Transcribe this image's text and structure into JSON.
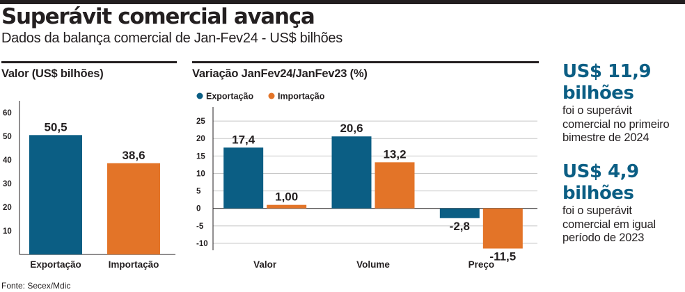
{
  "header": {
    "title": "Superávit comercial avança",
    "subtitle": "Dados da balança comercial de Jan-Fev24 - US$ bilhões"
  },
  "colors": {
    "export": "#0b5e84",
    "import": "#e37428",
    "text": "#231f20",
    "grid": "#c8c8c8"
  },
  "chart_data": [
    {
      "type": "bar",
      "title": "Valor (US$ bilhões)",
      "categories": [
        "Exportação",
        "Importação"
      ],
      "values": [
        50.5,
        38.6
      ],
      "value_labels": [
        "50,5",
        "38,6"
      ],
      "yticks": [
        10,
        20,
        30,
        40,
        50,
        60
      ],
      "ylim": [
        0,
        65
      ],
      "grid": false
    },
    {
      "type": "bar",
      "title": "Variação JanFev24/JanFev23 (%)",
      "categories": [
        "Valor",
        "Volume",
        "Preço"
      ],
      "series": [
        {
          "name": "Exportação",
          "values": [
            17.4,
            20.6,
            -2.8
          ],
          "labels": [
            "17,4",
            "20,6",
            "-2,8"
          ]
        },
        {
          "name": "Importação",
          "values": [
            1.0,
            13.2,
            -11.5
          ],
          "labels": [
            "1,00",
            "13,2",
            "-11,5"
          ]
        }
      ],
      "yticks": [
        25,
        20,
        15,
        10,
        5,
        0,
        -5,
        -10
      ],
      "ylim": [
        -12,
        29
      ],
      "legend": "top-left",
      "grid": true
    }
  ],
  "callouts": [
    {
      "big_line1": "US$ 11,9",
      "big_line2": "bilhões",
      "text": [
        "foi o superávit",
        "comercial no primeiro",
        "bimestre de 2024"
      ]
    },
    {
      "big_line1": "US$ 4,9",
      "big_line2": "bilhões",
      "text": [
        "foi o superávit",
        "comercial em igual",
        "período de 2023"
      ]
    }
  ],
  "source": "Fonte: Secex/Mdic"
}
